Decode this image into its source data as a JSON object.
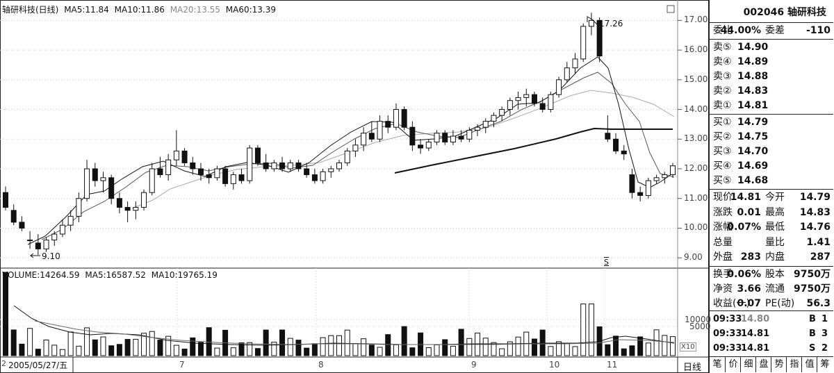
{
  "price_header": {
    "name": "轴研科技(日线)",
    "ma5": "MA5:11.84",
    "ma10": "MA10:11.86",
    "ma20": "MA20:13.55",
    "ma60": "MA60:13.39"
  },
  "volume_header": {
    "volume": "VOLUME:14264.59",
    "ma5": "MA5:16587.52",
    "ma10": "MA10:19765.19"
  },
  "annotations": {
    "high": "17.26",
    "low": "9.10",
    "marker": "S"
  },
  "price_ticks": [
    "17.00",
    "16.00",
    "15.00",
    "14.00",
    "13.00",
    "12.00",
    "11.00",
    "10.00",
    "9.00"
  ],
  "volume_ticks": [
    "10000",
    "5000"
  ],
  "volume_unit": "X10",
  "date_bar": {
    "start_date": "2005/05/27/五",
    "months": [
      "7",
      "8",
      "9",
      "10",
      "11"
    ],
    "left_mark": "2"
  },
  "period_tab": "日线",
  "bottom_tabs": [
    "笔",
    "价",
    "细",
    "盘",
    "势",
    "指",
    "值",
    "筹"
  ],
  "quote": {
    "code_name": "002046 轴研科技",
    "wei_bi_label": "委比",
    "wei_bi": "44.00%",
    "wei_cha_label": "委差",
    "wei_cha": "-110",
    "sell": [
      {
        "label": "卖⑤",
        "price": "14.90"
      },
      {
        "label": "卖④",
        "price": "14.89"
      },
      {
        "label": "卖③",
        "price": "14.88"
      },
      {
        "label": "卖②",
        "price": "14.83"
      },
      {
        "label": "卖①",
        "price": "14.81"
      }
    ],
    "buy": [
      {
        "label": "买①",
        "price": "14.79"
      },
      {
        "label": "买②",
        "price": "14.75"
      },
      {
        "label": "买③",
        "price": "14.70"
      },
      {
        "label": "买④",
        "price": "14.69"
      },
      {
        "label": "买⑤",
        "price": "14.68"
      }
    ],
    "stats": [
      {
        "l1": "现价",
        "v1": "14.81",
        "l2": "今开",
        "v2": "14.79"
      },
      {
        "l1": "涨跌",
        "v1": "0.01",
        "l2": "最高",
        "v2": "14.83"
      },
      {
        "l1": "涨幅",
        "v1": "0.07%",
        "l2": "最低",
        "v2": "14.76"
      },
      {
        "l1": "总量",
        "v1": "",
        "l2": "量比",
        "v2": "1.41"
      },
      {
        "l1": "外盘",
        "v1": "283",
        "l2": "内盘",
        "v2": "287"
      }
    ],
    "stats2": [
      {
        "l1": "换手",
        "v1": "0.06%",
        "l2": "股本",
        "v2": "9750万"
      },
      {
        "l1": "净资",
        "v1": "3.66",
        "l2": "流通",
        "v2": "9750万"
      },
      {
        "l1": "收益(一)",
        "v1": "0.07",
        "l2": "PE(动)",
        "v2": "56.3"
      }
    ],
    "ticks": [
      {
        "time": "09:33",
        "price": "14.80",
        "side": "B",
        "qty": "1"
      },
      {
        "time": "09:33",
        "price": "14.81",
        "side": "B",
        "qty": "3"
      },
      {
        "time": "09:33",
        "price": "14.81",
        "side": "S",
        "qty": "2"
      }
    ]
  },
  "chart_data": {
    "type": "candlestick",
    "y_range": [
      8.7,
      17.5
    ],
    "candles_ohlc": [
      [
        11.2,
        11.4,
        10.6,
        10.7
      ],
      [
        10.6,
        10.8,
        10.1,
        10.2
      ],
      [
        10.2,
        10.4,
        9.9,
        10.0
      ],
      [
        9.6,
        9.9,
        9.3,
        9.6
      ],
      [
        9.5,
        9.8,
        9.1,
        9.3
      ],
      [
        9.3,
        9.7,
        9.2,
        9.6
      ],
      [
        9.6,
        9.9,
        9.4,
        9.8
      ],
      [
        9.8,
        10.3,
        9.7,
        10.1
      ],
      [
        10.1,
        10.6,
        9.9,
        10.4
      ],
      [
        10.4,
        11.2,
        10.2,
        11.0
      ],
      [
        11.0,
        12.3,
        10.9,
        12.0
      ],
      [
        12.0,
        12.2,
        11.4,
        11.6
      ],
      [
        11.6,
        11.9,
        11.2,
        11.7
      ],
      [
        11.7,
        11.8,
        10.8,
        11.0
      ],
      [
        11.0,
        11.2,
        10.5,
        10.7
      ],
      [
        10.7,
        10.9,
        10.2,
        10.6
      ],
      [
        10.6,
        10.9,
        10.3,
        10.7
      ],
      [
        10.7,
        11.3,
        10.6,
        11.2
      ],
      [
        11.2,
        12.2,
        11.1,
        12.0
      ],
      [
        12.0,
        12.4,
        11.7,
        11.8
      ],
      [
        11.8,
        12.5,
        11.6,
        12.3
      ],
      [
        12.3,
        13.3,
        12.1,
        12.6
      ],
      [
        12.6,
        12.7,
        12.1,
        12.2
      ],
      [
        12.2,
        12.4,
        11.8,
        12.0
      ],
      [
        12.0,
        12.2,
        11.6,
        11.8
      ],
      [
        11.8,
        12.0,
        11.5,
        11.7
      ],
      [
        11.7,
        12.1,
        11.6,
        12.0
      ],
      [
        12.0,
        12.1,
        11.4,
        11.5
      ],
      [
        11.5,
        11.9,
        11.3,
        11.8
      ],
      [
        11.8,
        12.0,
        11.5,
        11.6
      ],
      [
        11.6,
        12.8,
        11.5,
        12.7
      ],
      [
        12.7,
        12.8,
        12.1,
        12.2
      ],
      [
        12.2,
        12.5,
        11.9,
        12.0
      ],
      [
        12.0,
        12.3,
        11.9,
        12.2
      ],
      [
        12.2,
        12.4,
        11.9,
        12.0
      ],
      [
        12.0,
        12.3,
        11.9,
        12.2
      ],
      [
        12.2,
        12.3,
        11.9,
        12.0
      ],
      [
        12.0,
        12.2,
        11.7,
        11.8
      ],
      [
        11.8,
        12.0,
        11.5,
        11.6
      ],
      [
        11.6,
        12.0,
        11.5,
        11.9
      ],
      [
        11.9,
        12.1,
        11.7,
        12.0
      ],
      [
        12.0,
        12.3,
        11.9,
        12.2
      ],
      [
        12.2,
        12.7,
        12.1,
        12.6
      ],
      [
        12.6,
        13.0,
        12.4,
        12.8
      ],
      [
        12.8,
        13.4,
        12.6,
        13.2
      ],
      [
        13.2,
        13.6,
        12.9,
        13.0
      ],
      [
        13.0,
        13.8,
        12.9,
        13.6
      ],
      [
        13.6,
        13.8,
        13.2,
        13.4
      ],
      [
        13.4,
        14.2,
        13.3,
        14.0
      ],
      [
        14.0,
        14.1,
        13.3,
        13.4
      ],
      [
        13.4,
        13.6,
        12.6,
        12.8
      ],
      [
        12.8,
        13.0,
        12.5,
        12.7
      ],
      [
        12.7,
        13.0,
        12.6,
        12.9
      ],
      [
        12.9,
        13.3,
        12.8,
        13.2
      ],
      [
        13.2,
        13.3,
        12.8,
        12.9
      ],
      [
        12.9,
        13.3,
        12.8,
        13.1
      ],
      [
        13.1,
        13.3,
        12.9,
        13.0
      ],
      [
        13.0,
        13.4,
        12.9,
        13.3
      ],
      [
        13.3,
        13.5,
        13.1,
        13.4
      ],
      [
        13.4,
        13.7,
        13.2,
        13.6
      ],
      [
        13.6,
        13.9,
        13.4,
        13.8
      ],
      [
        13.8,
        14.1,
        13.6,
        14.0
      ],
      [
        14.0,
        14.4,
        13.8,
        14.3
      ],
      [
        14.3,
        14.6,
        14.0,
        14.4
      ],
      [
        14.4,
        14.7,
        14.1,
        14.5
      ],
      [
        14.5,
        14.6,
        14.1,
        14.2
      ],
      [
        14.2,
        14.4,
        13.9,
        14.0
      ],
      [
        14.0,
        14.6,
        13.9,
        14.5
      ],
      [
        14.5,
        15.1,
        14.4,
        15.0
      ],
      [
        15.0,
        15.6,
        14.9,
        15.4
      ],
      [
        15.4,
        15.9,
        15.2,
        15.7
      ],
      [
        15.7,
        16.9,
        15.6,
        16.8
      ],
      [
        16.8,
        17.26,
        16.5,
        17.0
      ],
      [
        17.0,
        17.1,
        15.6,
        15.8
      ],
      [
        13.2,
        13.8,
        12.9,
        13.0
      ],
      [
        13.0,
        13.2,
        12.5,
        12.6
      ],
      [
        12.6,
        12.8,
        12.3,
        12.5
      ],
      [
        11.8,
        12.0,
        11.0,
        11.2
      ],
      [
        11.2,
        11.4,
        10.9,
        11.1
      ],
      [
        11.1,
        11.7,
        11.0,
        11.6
      ],
      [
        11.6,
        11.8,
        11.5,
        11.7
      ],
      [
        11.7,
        11.9,
        11.5,
        11.8
      ],
      [
        11.8,
        12.2,
        11.7,
        12.1
      ]
    ],
    "ma60_segment": [
      11.9,
      13.4
    ]
  }
}
